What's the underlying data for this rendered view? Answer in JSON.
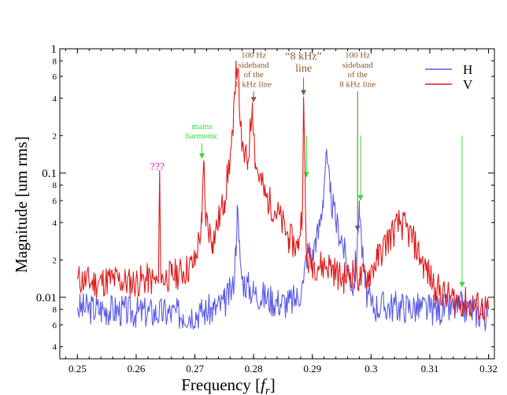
{
  "chart_data": {
    "type": "line",
    "xlabel": "Frequency",
    "xlabel_unit": "f",
    "xlabel_unit_sub": "r",
    "ylabel": "Magnitude  [um rms]",
    "xlim": [
      0.247,
      0.321
    ],
    "ylim": [
      0.0032,
      1.0
    ],
    "yscale": "log",
    "xticks": [
      0.25,
      0.26,
      0.27,
      0.28,
      0.29,
      0.3,
      0.31,
      0.32
    ],
    "xtick_labels": [
      "0.25",
      "0.26",
      "0.27",
      "0.28",
      "0.29",
      "0.3",
      "0.31",
      "0.32"
    ],
    "ymajor_ticks": [
      0.01,
      0.1,
      1
    ],
    "ymajor_labels": [
      "0.01",
      "0.1",
      "1"
    ],
    "yminor_ticks": [
      0.004,
      0.006,
      0.008,
      0.02,
      0.04,
      0.06,
      0.08,
      0.2,
      0.4,
      0.6,
      0.8
    ],
    "yminor_labels": [
      "4",
      "6",
      "8",
      "2",
      "4",
      "6",
      "8",
      "2",
      "4",
      "6",
      "8"
    ],
    "legend_position": "top-right",
    "series": [
      {
        "name": "H",
        "color": "#5a5ae6",
        "noise_amp": 0.13,
        "seed": 3,
        "points": [
          [
            0.25,
            0.0082
          ],
          [
            0.255,
            0.008
          ],
          [
            0.26,
            0.0076
          ],
          [
            0.265,
            0.0075
          ],
          [
            0.268,
            0.0073
          ],
          [
            0.271,
            0.0076
          ],
          [
            0.2732,
            0.008
          ],
          [
            0.275,
            0.009
          ],
          [
            0.2765,
            0.012
          ],
          [
            0.277,
            0.026
          ],
          [
            0.2772,
            0.055
          ],
          [
            0.2775,
            0.028
          ],
          [
            0.278,
            0.014
          ],
          [
            0.28,
            0.011
          ],
          [
            0.282,
            0.01
          ],
          [
            0.284,
            0.0092
          ],
          [
            0.286,
            0.009
          ],
          [
            0.2875,
            0.01
          ],
          [
            0.2885,
            0.013
          ],
          [
            0.289,
            0.022
          ],
          [
            0.2895,
            0.024
          ],
          [
            0.29,
            0.02
          ],
          [
            0.2905,
            0.03
          ],
          [
            0.291,
            0.032
          ],
          [
            0.2918,
            0.06
          ],
          [
            0.2923,
            0.14
          ],
          [
            0.293,
            0.07
          ],
          [
            0.294,
            0.04
          ],
          [
            0.295,
            0.03
          ],
          [
            0.296,
            0.017
          ],
          [
            0.297,
            0.012
          ],
          [
            0.2978,
            0.033
          ],
          [
            0.298,
            0.06
          ],
          [
            0.2985,
            0.022
          ],
          [
            0.299,
            0.012
          ],
          [
            0.3,
            0.0085
          ],
          [
            0.305,
            0.0085
          ],
          [
            0.31,
            0.008
          ],
          [
            0.315,
            0.0082
          ],
          [
            0.3155,
            0.0085
          ],
          [
            0.318,
            0.0076
          ],
          [
            0.32,
            0.007
          ]
        ]
      },
      {
        "name": "V",
        "color": "#e01818",
        "noise_amp": 0.13,
        "seed": 11,
        "points": [
          [
            0.25,
            0.014
          ],
          [
            0.253,
            0.013
          ],
          [
            0.256,
            0.014
          ],
          [
            0.259,
            0.013
          ],
          [
            0.262,
            0.014
          ],
          [
            0.2638,
            0.013
          ],
          [
            0.264,
            0.105
          ],
          [
            0.2642,
            0.014
          ],
          [
            0.266,
            0.015
          ],
          [
            0.268,
            0.016
          ],
          [
            0.27,
            0.019
          ],
          [
            0.2712,
            0.04
          ],
          [
            0.2715,
            0.125
          ],
          [
            0.2718,
            0.045
          ],
          [
            0.273,
            0.028
          ],
          [
            0.275,
            0.06
          ],
          [
            0.2765,
            0.2
          ],
          [
            0.277,
            0.8
          ],
          [
            0.2773,
            0.7
          ],
          [
            0.278,
            0.15
          ],
          [
            0.279,
            0.12
          ],
          [
            0.2798,
            0.37
          ],
          [
            0.2803,
            0.12
          ],
          [
            0.282,
            0.065
          ],
          [
            0.284,
            0.048
          ],
          [
            0.286,
            0.03
          ],
          [
            0.2875,
            0.025
          ],
          [
            0.2883,
            0.05
          ],
          [
            0.2885,
            0.41
          ],
          [
            0.2888,
            0.06
          ],
          [
            0.289,
            0.02
          ],
          [
            0.291,
            0.018
          ],
          [
            0.293,
            0.018
          ],
          [
            0.295,
            0.014
          ],
          [
            0.297,
            0.016
          ],
          [
            0.298,
            0.014
          ],
          [
            0.2995,
            0.015
          ],
          [
            0.301,
            0.02
          ],
          [
            0.303,
            0.03
          ],
          [
            0.305,
            0.04
          ],
          [
            0.307,
            0.03
          ],
          [
            0.309,
            0.018
          ],
          [
            0.311,
            0.012
          ],
          [
            0.313,
            0.01
          ],
          [
            0.316,
            0.009
          ],
          [
            0.32,
            0.008
          ]
        ]
      }
    ],
    "annotations": [
      {
        "lines": [
          "???"
        ],
        "color": "#e020e0",
        "size": 14,
        "x": 0.2636,
        "text_y": 0.108,
        "arrow": false
      },
      {
        "lines": [
          "mains",
          "harmonic"
        ],
        "color": "#33dd33",
        "size": 11,
        "x": 0.2712,
        "text_y": 0.23,
        "arrow": true,
        "arrow_from": 0.17,
        "arrow_to": 0.13
      },
      {
        "lines": [
          "100 Hz",
          "sideband",
          "of the",
          "8 kHz line"
        ],
        "color": "#8b5a2b",
        "size": 11,
        "x": 0.28,
        "text_y": 0.86,
        "arrow": true,
        "arrow_from": 0.9,
        "arrow_to": 0.37
      },
      {
        "lines": [
          "“8 kHz”",
          "line"
        ],
        "color": "#8b5a2b",
        "size": 14,
        "x": 0.2885,
        "text_y": 0.84,
        "arrow": true,
        "arrow_from": 0.69,
        "arrow_to": 0.42
      },
      {
        "lines": [
          "100 Hz",
          "sideband",
          "of the",
          "8 kHz line"
        ],
        "color": "#8b5a2b",
        "size": 11,
        "x": 0.2977,
        "text_y": 0.86,
        "arrow": true,
        "arrow_from": 0.9,
        "arrow_to": 0.034
      },
      {
        "lines": [],
        "color": "#33dd33",
        "size": 11,
        "x": 0.289,
        "arrow": true,
        "arrow_from": 0.2,
        "arrow_to": 0.092
      },
      {
        "lines": [],
        "color": "#33dd33",
        "size": 11,
        "x": 0.2982,
        "arrow": true,
        "arrow_from": 0.2,
        "arrow_to": 0.06
      },
      {
        "lines": [],
        "color": "#33dd33",
        "size": 11,
        "x": 0.3155,
        "arrow": true,
        "arrow_from": 0.2,
        "arrow_to": 0.012
      }
    ]
  }
}
